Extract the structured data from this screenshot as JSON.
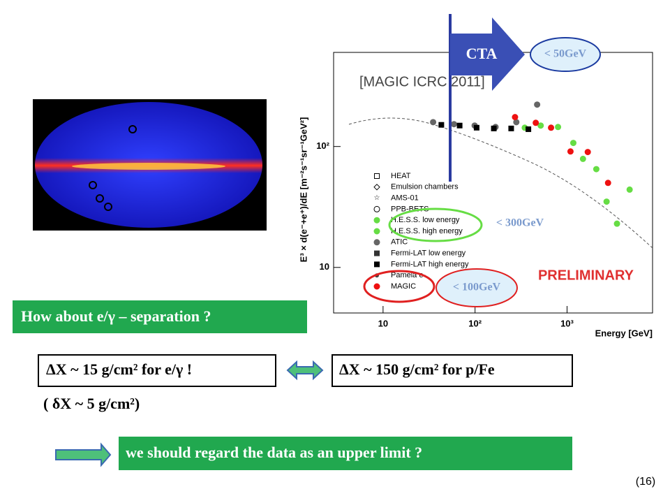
{
  "slide": {
    "question": "How about e/γ – separation ?",
    "depth_e": "ΔX ~ 15 g/cm²   for e/γ  !",
    "depth_p": "ΔX ~ 150 g/cm²  for p/Fe",
    "depth_delta": "( δX ~ 5 g/cm²)",
    "conclusion": "we should regard the data as an upper limit ?",
    "page_number": "(16)",
    "cta": "CTA",
    "limit_50": "< 50GeV",
    "limit_300": "< 300GeV",
    "limit_100": "< 100GeV"
  },
  "chart_data": {
    "type": "scatter",
    "title": "[MAGIC ICRC 2011]",
    "annotation": "PRELIMINARY",
    "x_label": "Energy [GeV]",
    "y_label": "E³ × d(e⁻+e⁺)/dE [m⁻²s⁻¹sr⁻¹GeV²]",
    "xlog": true,
    "ylog": true,
    "xlim": [
      2.9,
      8500
    ],
    "ylim": [
      4.2,
      600
    ],
    "xticks": [
      10,
      {
        "value": 100,
        "label": "10²"
      },
      {
        "value": 1000,
        "label": "10³"
      }
    ],
    "yticks": [
      10,
      {
        "value": 100,
        "label": "10²"
      }
    ],
    "series": [
      {
        "name": "HEAT",
        "color": "#000000",
        "marker": "square-open",
        "x": [],
        "values": []
      },
      {
        "name": "Emulsion chambers",
        "color": "#000000",
        "marker": "diamond-open",
        "x": [],
        "values": []
      },
      {
        "name": "AMS-01",
        "color": "#000000",
        "marker": "star",
        "x": [],
        "values": []
      },
      {
        "name": "PPB-BETS",
        "color": "#000000",
        "marker": "circle-open",
        "x": [],
        "values": []
      },
      {
        "name": "H.E.S.S. low energy",
        "color": "#66dd44",
        "marker": "circle",
        "x": [],
        "values": []
      },
      {
        "name": "H.E.S.S. high energy",
        "color": "#66dd44",
        "marker": "circle",
        "x": [
          347,
          517,
          798,
          1170,
          1490,
          2080,
          2690,
          3490,
          4790
        ],
        "values": [
          143,
          149,
          145,
          107,
          79,
          65,
          35,
          23,
          44
        ]
      },
      {
        "name": "ATIC",
        "color": "#666666",
        "marker": "circle",
        "x": [
          35,
          59,
          99,
          167,
          281,
          473
        ],
        "values": [
          159,
          153,
          149,
          145,
          159,
          222
        ]
      },
      {
        "name": "Fermi-LAT low energy",
        "color": "#333333",
        "marker": "square",
        "x": [],
        "values": []
      },
      {
        "name": "Fermi-LAT high energy",
        "color": "#000000",
        "marker": "square",
        "x": [
          43,
          68,
          104,
          160,
          247,
          380
        ],
        "values": [
          151,
          149,
          143,
          141,
          141,
          139
        ]
      },
      {
        "name": "Pamela e-",
        "color": "#444444",
        "marker": "circle-small",
        "x": [],
        "values": []
      },
      {
        "name": "MAGIC",
        "color": "#ee1111",
        "marker": "circle",
        "x": [
          272,
          457,
          670,
          1090,
          1680,
          2790
        ],
        "values": [
          175,
          157,
          143,
          91,
          90,
          50
        ]
      }
    ]
  }
}
